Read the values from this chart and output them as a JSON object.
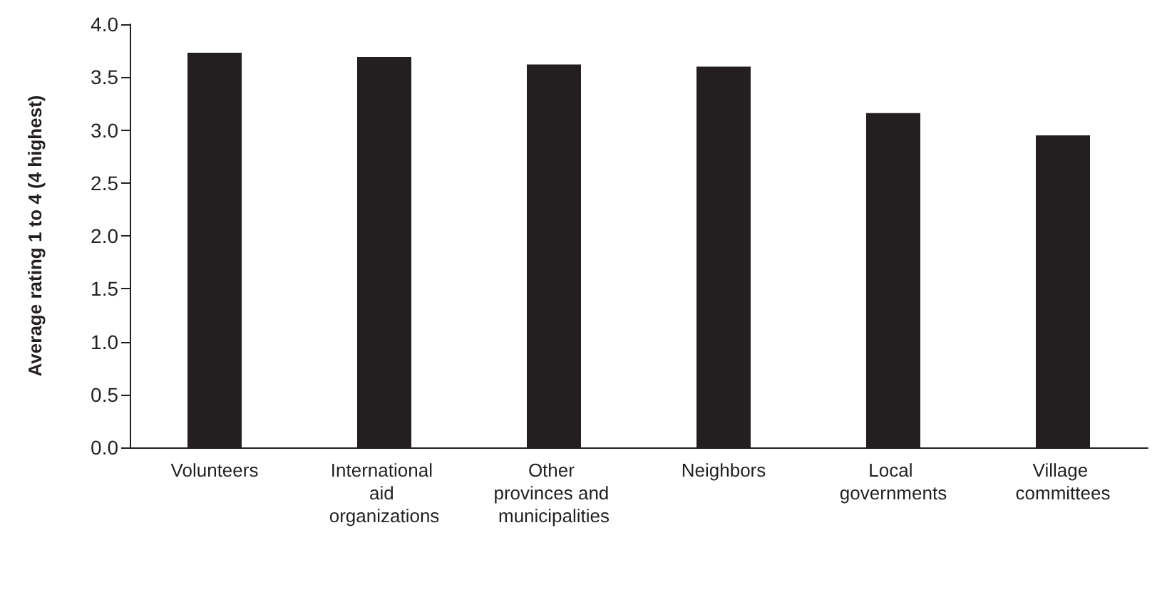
{
  "chart_data": {
    "type": "bar",
    "ylabel": "Average rating 1 to 4 (4 highest)",
    "categories": [
      "Volunteers",
      "International aid organizations",
      "Other provinces and municipalities",
      "Neighbors",
      "Local governments",
      "Village committees"
    ],
    "values": [
      3.73,
      3.69,
      3.62,
      3.6,
      3.16,
      2.95
    ],
    "color": "#231f20",
    "ylim": [
      0,
      4
    ],
    "yticks": [
      {
        "value": 0,
        "label": "0.0"
      },
      {
        "value": 0.5,
        "label": "0.5"
      },
      {
        "value": 1,
        "label": "1.0"
      },
      {
        "value": 1.5,
        "label": "1.5"
      },
      {
        "value": 2,
        "label": "2.0"
      },
      {
        "value": 2.5,
        "label": "2.5"
      },
      {
        "value": 3,
        "label": "3.0"
      },
      {
        "value": 3.5,
        "label": "3.5"
      },
      {
        "value": 4,
        "label": "4.0"
      }
    ],
    "grid": false
  }
}
